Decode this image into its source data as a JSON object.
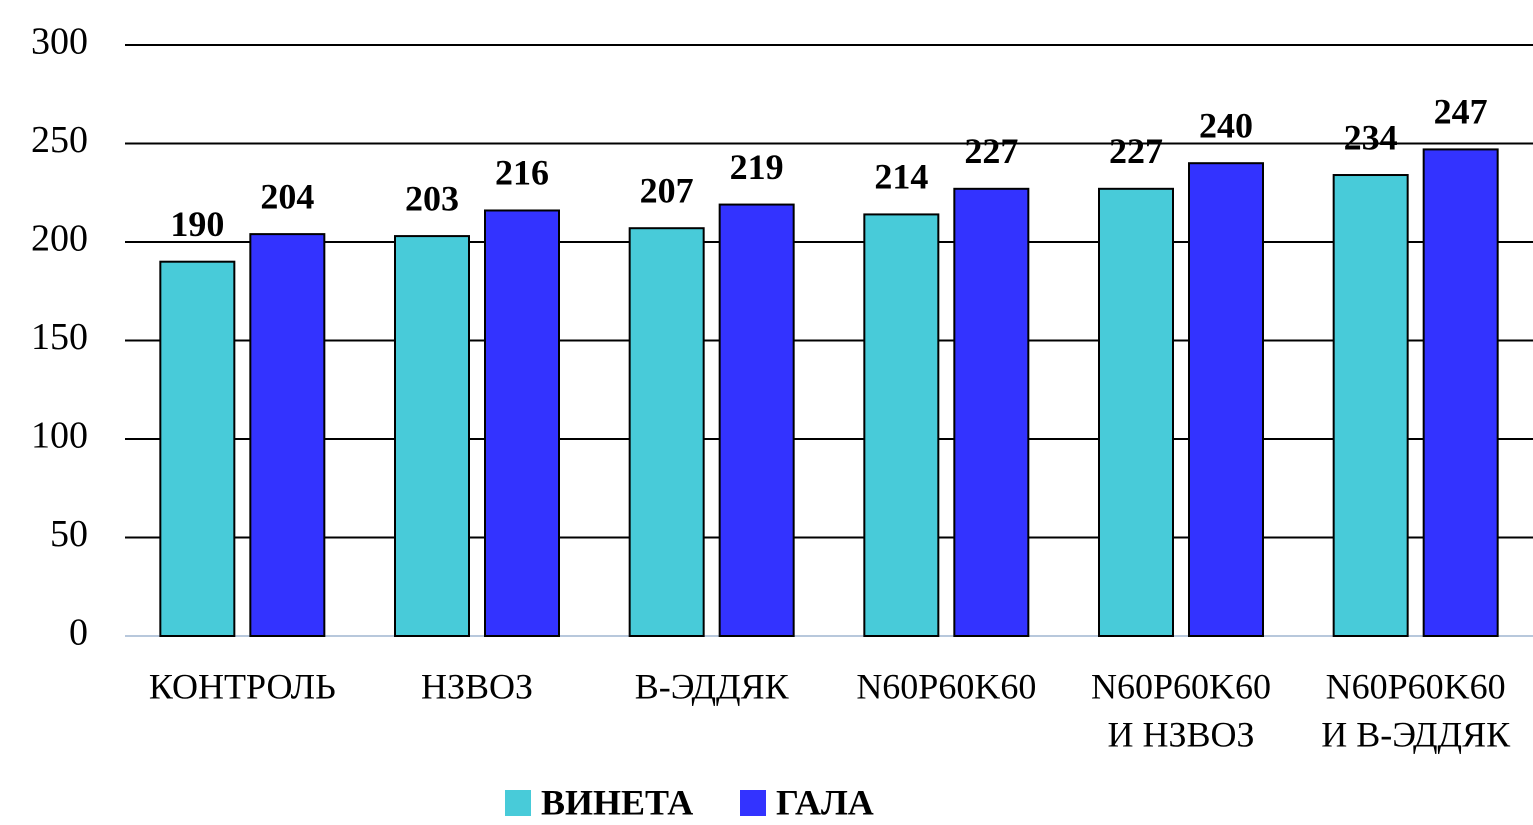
{
  "chart_data": {
    "type": "bar",
    "categories": [
      [
        "КОНТРОЛЬ"
      ],
      [
        "НЗВОЗ"
      ],
      [
        "В-ЭДДЯК"
      ],
      [
        "N60P60K60"
      ],
      [
        "N60P60K60",
        "И НЗВОЗ"
      ],
      [
        "N60P60K60",
        "И В-ЭДДЯК"
      ]
    ],
    "series": [
      {
        "name": "ВИНЕТА",
        "color": "#48cbd9",
        "values": [
          190,
          203,
          207,
          214,
          227,
          234
        ]
      },
      {
        "name": "ГАЛА",
        "color": "#3333ff",
        "values": [
          204,
          216,
          219,
          227,
          240,
          247
        ]
      }
    ],
    "ylim": [
      0,
      300
    ],
    "yticks": [
      0,
      50,
      100,
      150,
      200,
      250,
      300
    ],
    "grid": true,
    "legend": "bottom"
  }
}
